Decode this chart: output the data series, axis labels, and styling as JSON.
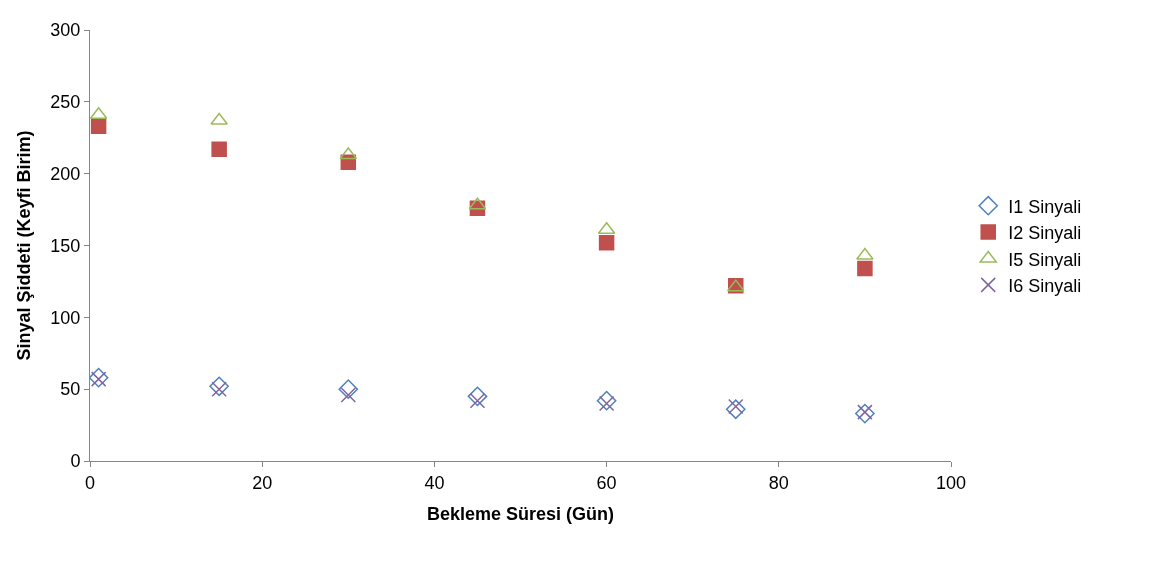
{
  "chart_data": {
    "type": "scatter",
    "xlabel": "Bekleme Süresi (Gün)",
    "ylabel": "Sinyal Şiddeti (Keyfi Birim)",
    "x": [
      1,
      15,
      30,
      45,
      60,
      75,
      90
    ],
    "xlim": [
      0,
      100
    ],
    "xticks": [
      0,
      20,
      40,
      60,
      80,
      100
    ],
    "ylim": [
      0,
      300
    ],
    "yticks": [
      0,
      50,
      100,
      150,
      200,
      250,
      300
    ],
    "legend": "right",
    "series": [
      {
        "name": "I1 Sinyali",
        "color": "#4f81bd",
        "marker": "diamond",
        "values": [
          58,
          52,
          50,
          45,
          42,
          36,
          33
        ]
      },
      {
        "name": "I2 Sinyali",
        "color": "#c0504d",
        "marker": "square",
        "values": [
          233,
          217,
          208,
          176,
          152,
          122,
          134
        ]
      },
      {
        "name": "I5 Sinyali",
        "color": "#9bbb59",
        "marker": "triangle",
        "values": [
          241,
          237,
          213,
          178,
          161,
          121,
          143
        ]
      },
      {
        "name": "I6 Sinyali",
        "color": "#8064a2",
        "marker": "cross",
        "values": [
          57,
          50,
          46,
          42,
          40,
          38,
          34
        ]
      }
    ]
  }
}
